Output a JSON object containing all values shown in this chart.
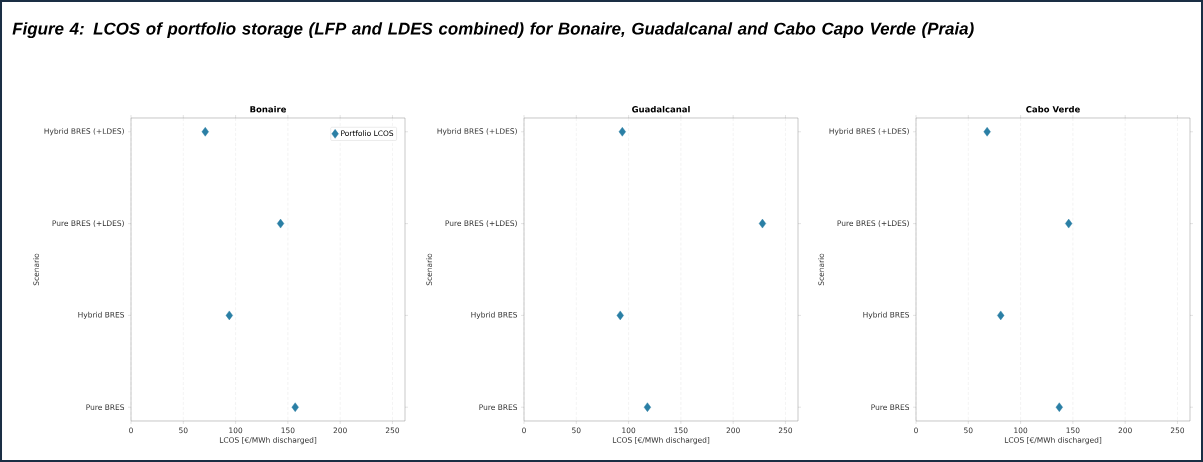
{
  "chart_data": [
    {
      "type": "other",
      "title": "Figure 4: LCOS of portfolio storage (LFP and LDES combined) for Bonaire, Guadalcanal and Cabo Capo Verde (Praia)"
    },
    {
      "type": "scatter",
      "orientation": "horizontal",
      "title": "Bonaire",
      "xlabel": "LCOS [€/MWh discharged]",
      "ylabel": "Scenario",
      "categories": [
        "Hybrid BRES (+LDES)",
        "Pure BRES (+LDES)",
        "Hybrid BRES",
        "Pure BRES"
      ],
      "series": [
        {
          "name": "Portfolio LCOS",
          "color": "#2a7fa5",
          "values": [
            71,
            143,
            94,
            157
          ]
        }
      ],
      "xlim": [
        0,
        262
      ],
      "xticks": [
        0,
        50,
        100,
        150,
        200,
        250
      ],
      "grid": "x",
      "marker": "diamond",
      "legend": "top right"
    },
    {
      "type": "scatter",
      "orientation": "horizontal",
      "title": "Guadalcanal",
      "xlabel": "LCOS [€/MWh discharged]",
      "ylabel": "Scenario",
      "categories": [
        "Hybrid BRES (+LDES)",
        "Pure BRES (+LDES)",
        "Hybrid BRES",
        "Pure BRES"
      ],
      "series": [
        {
          "color": "#2a7fa5",
          "values": [
            94,
            228,
            92,
            118
          ]
        }
      ],
      "xlim": [
        0,
        262
      ],
      "xticks": [
        0,
        50,
        100,
        150,
        200,
        250
      ],
      "grid": "x",
      "marker": "diamond"
    },
    {
      "type": "scatter",
      "orientation": "horizontal",
      "title": "Cabo Verde",
      "xlabel": "LCOS [€/MWh discharged]",
      "ylabel": "Scenario",
      "categories": [
        "Hybrid BRES (+LDES)",
        "Pure BRES (+LDES)",
        "Hybrid BRES",
        "Pure BRES"
      ],
      "series": [
        {
          "color": "#2a7fa5",
          "values": [
            68,
            146,
            81,
            137
          ]
        }
      ],
      "xlim": [
        0,
        262
      ],
      "xticks": [
        0,
        50,
        100,
        150,
        200,
        250
      ],
      "grid": "x",
      "marker": "diamond"
    }
  ]
}
